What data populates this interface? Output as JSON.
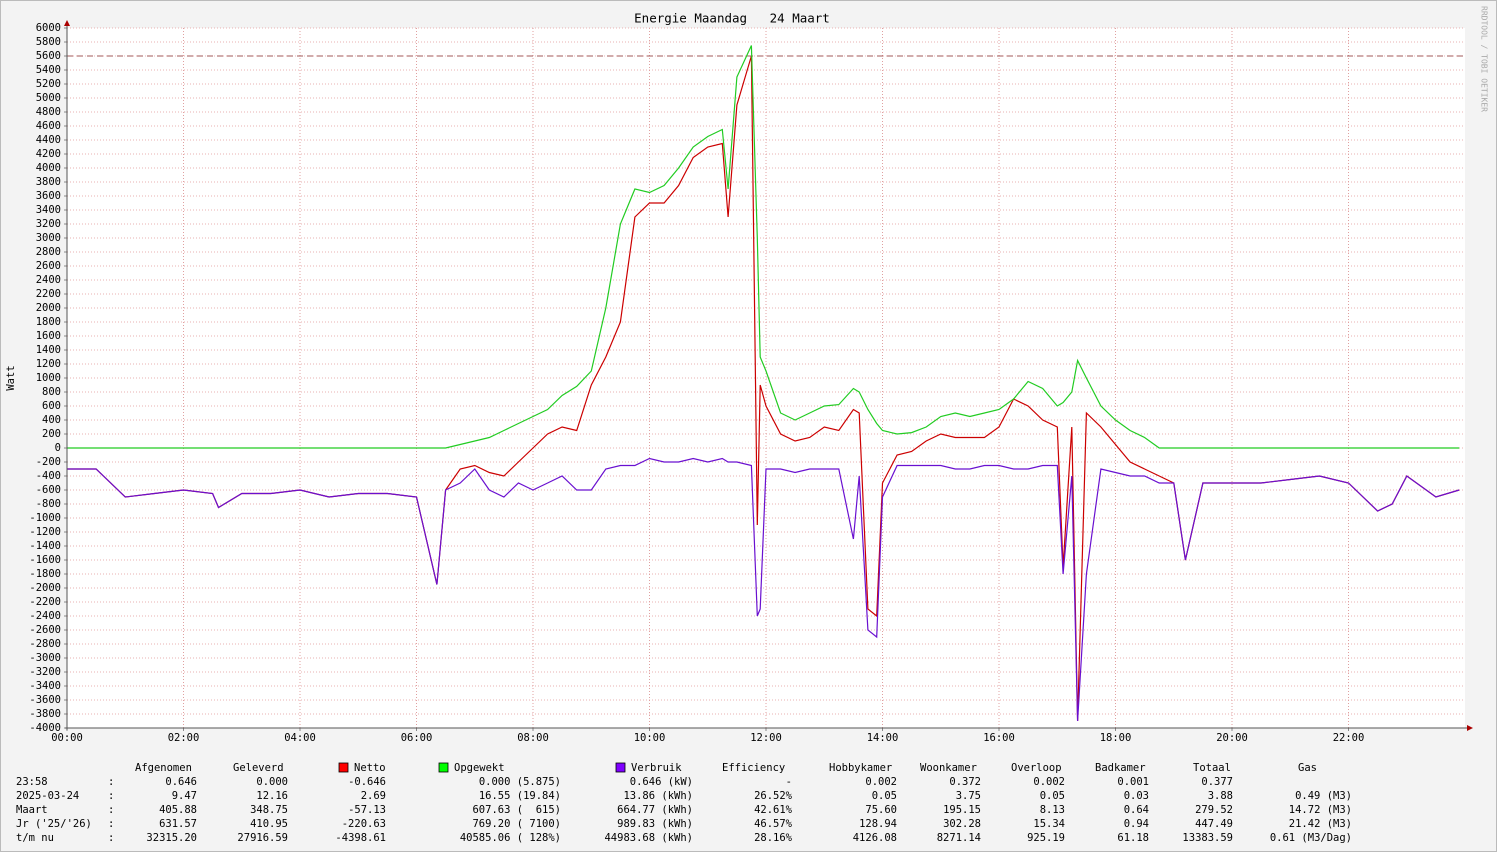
{
  "chart_data": {
    "type": "line",
    "title": "Energie Maandag   24 Maart",
    "y_label": "Watt",
    "watermark": "RRDTOOL / TOBI OETIKER",
    "xlim": [
      0,
      24
    ],
    "xticks": [
      {
        "value": 0,
        "label": "00:00"
      },
      {
        "value": 2,
        "label": "02:00"
      },
      {
        "value": 4,
        "label": "04:00"
      },
      {
        "value": 6,
        "label": "06:00"
      },
      {
        "value": 8,
        "label": "08:00"
      },
      {
        "value": 10,
        "label": "10:00"
      },
      {
        "value": 12,
        "label": "12:00"
      },
      {
        "value": 14,
        "label": "14:00"
      },
      {
        "value": 16,
        "label": "16:00"
      },
      {
        "value": 18,
        "label": "18:00"
      },
      {
        "value": 20,
        "label": "20:00"
      },
      {
        "value": 22,
        "label": "22:00"
      }
    ],
    "ylim": [
      -4000,
      6000
    ],
    "yticks": [
      -4000,
      -3800,
      -3600,
      -3400,
      -3200,
      -3000,
      -2800,
      -2600,
      -2400,
      -2200,
      -2000,
      -1800,
      -1600,
      -1400,
      -1200,
      -1000,
      -800,
      -600,
      -400,
      -200,
      0,
      200,
      400,
      600,
      800,
      1000,
      1200,
      1400,
      1600,
      1800,
      2000,
      2200,
      2400,
      2600,
      2800,
      3000,
      3200,
      3400,
      3600,
      3800,
      4000,
      4200,
      4400,
      4600,
      4800,
      5000,
      5200,
      5400,
      5600,
      5800,
      6000
    ],
    "grid": true,
    "hline": {
      "value": 5600,
      "color": "#a05a5a"
    },
    "x": [
      0,
      0.5,
      1,
      1.5,
      2,
      2.5,
      2.6,
      3,
      3.5,
      4,
      4.5,
      5,
      5.5,
      6,
      6.35,
      6.5,
      6.75,
      7,
      7.25,
      7.5,
      7.75,
      8,
      8.25,
      8.5,
      8.75,
      9,
      9.25,
      9.5,
      9.75,
      10,
      10.25,
      10.5,
      10.75,
      11,
      11.25,
      11.35,
      11.5,
      11.75,
      11.85,
      11.9,
      12,
      12.25,
      12.5,
      12.75,
      13,
      13.25,
      13.5,
      13.6,
      13.75,
      13.9,
      14,
      14.25,
      14.5,
      14.75,
      15,
      15.25,
      15.5,
      15.75,
      16,
      16.25,
      16.5,
      16.75,
      17,
      17.1,
      17.25,
      17.35,
      17.5,
      17.75,
      18,
      18.25,
      18.5,
      18.75,
      19,
      19.2,
      19.5,
      20,
      20.5,
      21,
      21.5,
      22,
      22.5,
      22.75,
      23,
      23.5,
      23.9
    ],
    "series": [
      {
        "name": "Netto",
        "color": "#cc0000",
        "legend_color": "#ff0000",
        "values": [
          -300,
          -300,
          -700,
          -650,
          -600,
          -650,
          -850,
          -650,
          -650,
          -600,
          -700,
          -650,
          -650,
          -700,
          -1950,
          -600,
          -300,
          -250,
          -350,
          -400,
          -200,
          0,
          200,
          300,
          250,
          900,
          1300,
          1800,
          3300,
          3500,
          3500,
          3750,
          4150,
          4300,
          4350,
          3300,
          4900,
          5600,
          -1100,
          900,
          600,
          200,
          100,
          150,
          300,
          250,
          550,
          500,
          -2300,
          -2400,
          -500,
          -100,
          -50,
          100,
          200,
          150,
          150,
          150,
          300,
          700,
          600,
          400,
          300,
          -1700,
          300,
          -3900,
          500,
          300,
          50,
          -200,
          -300,
          -400,
          -500,
          -1600,
          -500,
          -500,
          -500,
          -450,
          -400,
          -500,
          -900,
          -800,
          -400,
          -700,
          -600
        ]
      },
      {
        "name": "Opgewekt",
        "color": "#22cc22",
        "legend_color": "#00ff00",
        "values": [
          0,
          0,
          0,
          0,
          0,
          0,
          0,
          0,
          0,
          0,
          0,
          0,
          0,
          0,
          0,
          0,
          50,
          100,
          150,
          250,
          350,
          450,
          550,
          750,
          880,
          1100,
          2000,
          3200,
          3700,
          3650,
          3750,
          4000,
          4300,
          4450,
          4550,
          3700,
          5300,
          5750,
          3000,
          1300,
          1100,
          500,
          400,
          500,
          600,
          620,
          850,
          800,
          550,
          350,
          250,
          200,
          220,
          300,
          450,
          500,
          450,
          500,
          550,
          700,
          950,
          850,
          600,
          650,
          800,
          1250,
          1000,
          600,
          400,
          250,
          150,
          0,
          0,
          0,
          0,
          0,
          0,
          0,
          0,
          0,
          0,
          0,
          0,
          0,
          0
        ]
      },
      {
        "name": "Verbruik",
        "color": "#6a10d0",
        "legend_color": "#7f00ff",
        "values": [
          -300,
          -300,
          -700,
          -650,
          -600,
          -650,
          -850,
          -650,
          -650,
          -600,
          -700,
          -650,
          -650,
          -700,
          -1950,
          -600,
          -500,
          -300,
          -600,
          -700,
          -500,
          -600,
          -500,
          -400,
          -600,
          -600,
          -300,
          -250,
          -250,
          -150,
          -200,
          -200,
          -150,
          -200,
          -150,
          -200,
          -200,
          -250,
          -2400,
          -2300,
          -300,
          -300,
          -350,
          -300,
          -300,
          -300,
          -1300,
          -400,
          -2600,
          -2700,
          -700,
          -250,
          -250,
          -250,
          -250,
          -300,
          -300,
          -250,
          -250,
          -300,
          -300,
          -250,
          -250,
          -1800,
          -400,
          -3900,
          -1800,
          -300,
          -350,
          -400,
          -400,
          -500,
          -500,
          -1600,
          -500,
          -500,
          -500,
          -450,
          -400,
          -500,
          -900,
          -800,
          -400,
          -700,
          -600
        ]
      }
    ]
  },
  "table": {
    "separator": ":",
    "headers": [
      "Afgenomen",
      "Geleverd",
      "Efficiency",
      "Hobbykamer",
      "Woonkamer",
      "Overloop",
      "Badkamer",
      "Totaal",
      "Gas"
    ],
    "rows": [
      {
        "label": "23:58",
        "cells": [
          "0.646",
          "0.000",
          "-0.646",
          "0.000 (5.875)",
          "0.646 (kW)",
          "-",
          "0.002",
          "0.372",
          "0.002",
          "0.001",
          "0.377"
        ]
      },
      {
        "label": "2025-03-24",
        "cells": [
          "9.47",
          "12.16",
          "2.69",
          "16.55 (19.84)",
          "13.86 (kWh)",
          "26.52%",
          "0.05",
          "3.75",
          "0.05",
          "0.03",
          "3.88",
          "0.49 (M3)"
        ]
      },
      {
        "label": "Maart",
        "cells": [
          "405.88",
          "348.75",
          "-57.13",
          "607.63 (  615)",
          "664.77 (kWh)",
          "42.61%",
          "75.60",
          "195.15",
          "8.13",
          "0.64",
          "279.52",
          "14.72 (M3)"
        ]
      },
      {
        "label": "Jr ('25/'26)",
        "cells": [
          "631.57",
          "410.95",
          "-220.63",
          "769.20 ( 7100)",
          "989.83 (kWh)",
          "46.57%",
          "128.94",
          "302.28",
          "15.34",
          "0.94",
          "447.49",
          "21.42 (M3)"
        ]
      },
      {
        "label": "t/m nu",
        "cells": [
          "32315.20",
          "27916.59",
          "-4398.61",
          "40585.06 ( 128%)",
          "44983.68 (kWh)",
          "28.16%",
          "4126.08",
          "8271.14",
          "925.19",
          "61.18",
          "13383.59",
          "0.61 (M3/Dag)"
        ]
      }
    ]
  }
}
